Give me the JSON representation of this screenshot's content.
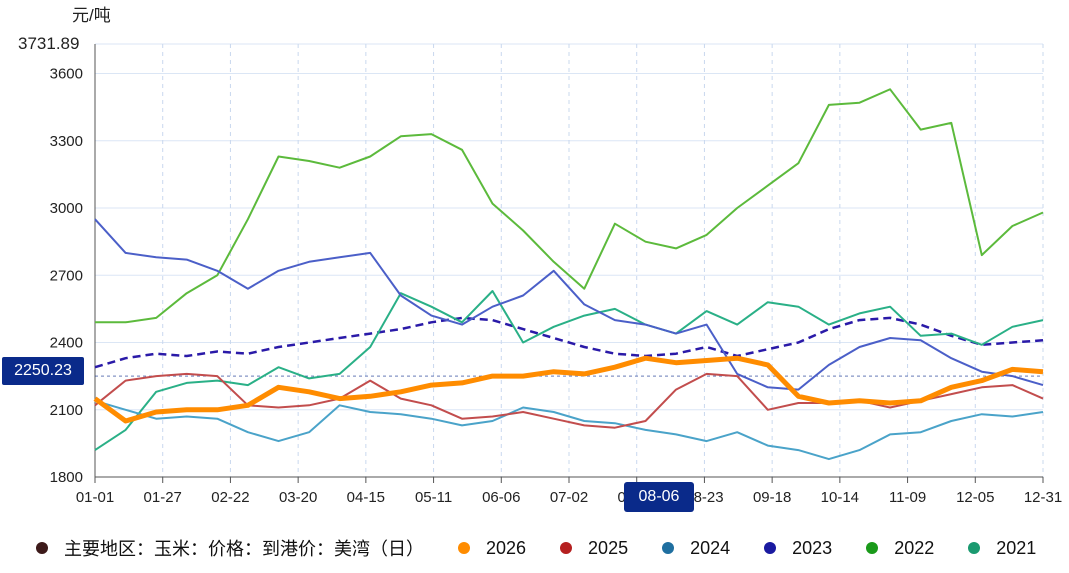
{
  "chart_data": {
    "type": "line",
    "ylabel": "元/吨",
    "ylim": [
      1800,
      3731.89
    ],
    "y_max_label": "3731.89",
    "yticks": [
      "1800",
      "2100",
      "2400",
      "2700",
      "3000",
      "3300",
      "3600"
    ],
    "x_ticks": [
      "01-01",
      "01-27",
      "02-22",
      "03-20",
      "04-15",
      "05-11",
      "06-06",
      "07-02",
      "07-28",
      "08-23",
      "09-18",
      "10-14",
      "11-09",
      "12-05",
      "12-31"
    ],
    "crosshair": {
      "x_label": "08-06",
      "y_label": "2250.23",
      "y_value": 2250.23
    },
    "legend_title": "主要地区：玉米：价格：到港价：美湾（日）",
    "series": [
      {
        "name": "2026",
        "color": "#ff8c00",
        "width": 5,
        "values": [
          2150,
          2050,
          2090,
          2100,
          2100,
          2120,
          2200,
          2180,
          2150,
          2160,
          2180,
          2210,
          2220,
          2250,
          2250,
          2270,
          2260,
          2290,
          2330,
          2310,
          2320,
          2330,
          2300,
          2160,
          2130,
          2140,
          2130,
          2140,
          2200,
          2230,
          2280,
          2270
        ]
      },
      {
        "name": "2025",
        "color": "#c24d4d",
        "width": 2,
        "values": [
          2120,
          2230,
          2250,
          2260,
          2250,
          2120,
          2110,
          2120,
          2150,
          2230,
          2150,
          2120,
          2060,
          2070,
          2090,
          2060,
          2030,
          2020,
          2050,
          2190,
          2260,
          2250,
          2100,
          2130,
          2130,
          2140,
          2110,
          2140,
          2170,
          2200,
          2210,
          2150
        ]
      },
      {
        "name": "2024",
        "color": "#4aa3c9",
        "width": 2,
        "values": [
          2140,
          2100,
          2060,
          2070,
          2060,
          2000,
          1960,
          2000,
          2120,
          2090,
          2080,
          2060,
          2030,
          2050,
          2110,
          2090,
          2050,
          2040,
          2010,
          1990,
          1960,
          2000,
          1940,
          1920,
          1880,
          1920,
          1990,
          2000,
          2050,
          2080,
          2070,
          2090
        ]
      },
      {
        "name": "2023",
        "color": "#4b5fc8",
        "width": 2,
        "values": [
          2950,
          2800,
          2780,
          2770,
          2720,
          2640,
          2720,
          2760,
          2780,
          2800,
          2610,
          2520,
          2480,
          2560,
          2610,
          2720,
          2570,
          2500,
          2480,
          2440,
          2480,
          2260,
          2200,
          2190,
          2300,
          2380,
          2420,
          2410,
          2330,
          2270,
          2250,
          2210
        ]
      },
      {
        "name": "2022",
        "color": "#5cba3c",
        "width": 2,
        "values": [
          2490,
          2490,
          2510,
          2620,
          2700,
          2950,
          3230,
          3210,
          3180,
          3230,
          3320,
          3330,
          3260,
          3020,
          2900,
          2760,
          2640,
          2930,
          2850,
          2820,
          2880,
          3000,
          3100,
          3200,
          3460,
          3470,
          3530,
          3350,
          3380,
          2790,
          2920,
          2980
        ]
      },
      {
        "name": "2021",
        "color": "#2ab087",
        "width": 2,
        "values": [
          1920,
          2010,
          2180,
          2220,
          2230,
          2210,
          2290,
          2240,
          2260,
          2380,
          2620,
          2560,
          2490,
          2630,
          2400,
          2470,
          2520,
          2550,
          2480,
          2440,
          2540,
          2480,
          2580,
          2560,
          2480,
          2530,
          2560,
          2430,
          2440,
          2390,
          2470,
          2500
        ]
      },
      {
        "name": "",
        "color": "#2a1aa8",
        "width": 2.5,
        "dashed": true,
        "values": [
          2290,
          2330,
          2350,
          2340,
          2360,
          2350,
          2380,
          2400,
          2420,
          2440,
          2460,
          2490,
          2510,
          2500,
          2460,
          2420,
          2380,
          2350,
          2340,
          2350,
          2380,
          2340,
          2370,
          2400,
          2460,
          2500,
          2510,
          2480,
          2430,
          2390,
          2400,
          2410
        ]
      }
    ]
  },
  "legend": [
    {
      "label": "主要地区：玉米：价格：到港价：美湾（日）",
      "color": "#3d1a1a"
    },
    {
      "label": "2026",
      "color": "#ff8c00"
    },
    {
      "label": "2025",
      "color": "#b52020"
    },
    {
      "label": "2024",
      "color": "#1f6fa0"
    },
    {
      "label": "2023",
      "color": "#1a1aa0"
    },
    {
      "label": "2022",
      "color": "#1a9a1a"
    },
    {
      "label": "2021",
      "color": "#1a9a70"
    }
  ]
}
